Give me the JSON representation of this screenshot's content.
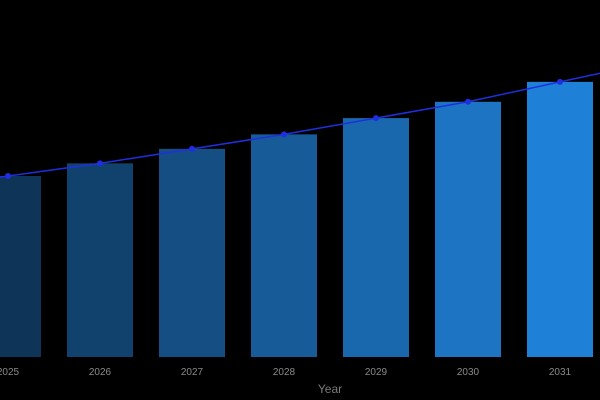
{
  "chart_data": {
    "type": "bar",
    "categories": [
      "2025",
      "2026",
      "2027",
      "2028",
      "2029",
      "2030",
      "2031"
    ],
    "values": [
      100,
      107,
      115,
      123,
      132,
      141,
      152
    ],
    "line_values": [
      100,
      107,
      115,
      123,
      132,
      141,
      152
    ],
    "xlabel": "Year",
    "ylabel": "",
    "grid": false,
    "colors": {
      "bar_start": "#0e3557",
      "bar_end": "#1f80d8",
      "line": "#1f2fe0",
      "background": "#000000"
    }
  }
}
